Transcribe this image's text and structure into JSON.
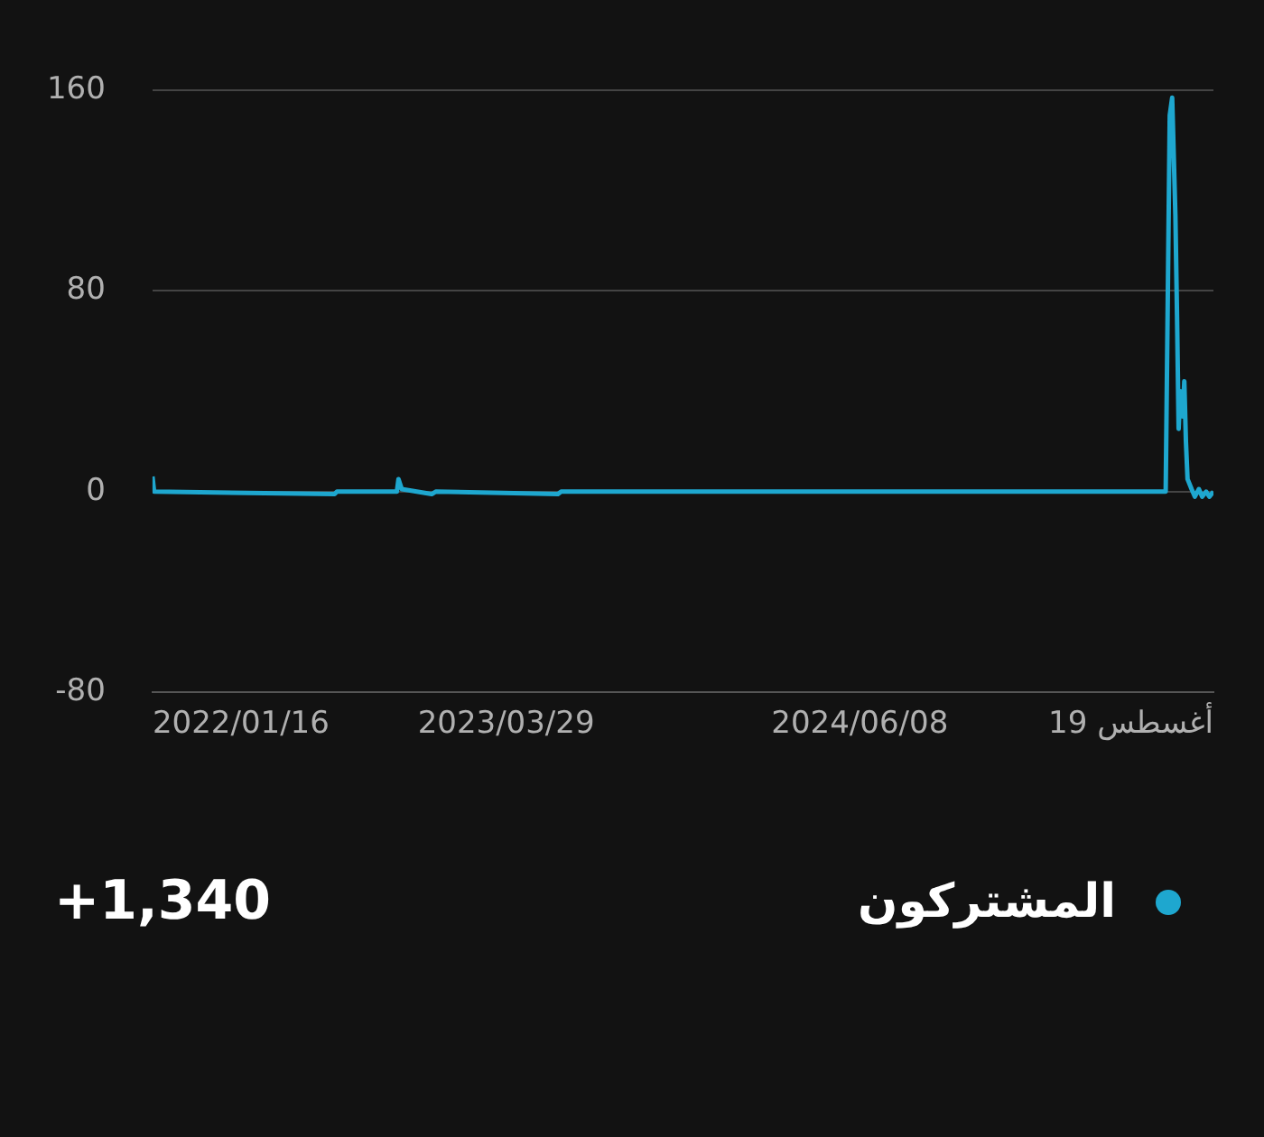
{
  "chart_data": {
    "type": "line",
    "xlim": [
      "2022-01-16",
      "2025-08-19"
    ],
    "xticks": [
      {
        "value": "2022-01-16",
        "label": "2022/01/16"
      },
      {
        "value": "2023-03-29",
        "label": "2023/03/29"
      },
      {
        "value": "2024-06-08",
        "label": "2024/06/08"
      },
      {
        "value": "2025-08-19",
        "label": "19 أغسطس"
      }
    ],
    "ylim": [
      -80,
      160
    ],
    "yticks": [
      -80,
      0,
      80,
      160
    ],
    "grid": "y",
    "legend": "bottom",
    "marker": "none",
    "annotations": [
      "+1,340"
    ],
    "series": [
      {
        "name": "المشتركون",
        "color": "#1ea7cf",
        "x": [
          "2022-01-16",
          "2022-01-18",
          "2022-08-29",
          "2022-09-01",
          "2022-11-14",
          "2022-11-16",
          "2022-11-20",
          "2022-12-27",
          "2023-01-01",
          "2023-06-01",
          "2023-06-05",
          "2024-01-01",
          "2025-06-21",
          "2025-06-26",
          "2025-06-29",
          "2025-07-03",
          "2025-07-05",
          "2025-07-07",
          "2025-07-09",
          "2025-07-12",
          "2025-07-14",
          "2025-07-16",
          "2025-07-18",
          "2025-07-23",
          "2025-07-27",
          "2025-08-01",
          "2025-08-05",
          "2025-08-10",
          "2025-08-14",
          "2025-08-19"
        ],
        "values": [
          6,
          0,
          -1,
          0,
          0,
          5,
          1,
          -1,
          0,
          -1,
          0,
          0,
          0,
          150,
          157,
          110,
          70,
          25,
          40,
          30,
          44,
          20,
          5,
          1,
          -2,
          1,
          -2,
          0,
          -2,
          0
        ]
      }
    ]
  }
}
